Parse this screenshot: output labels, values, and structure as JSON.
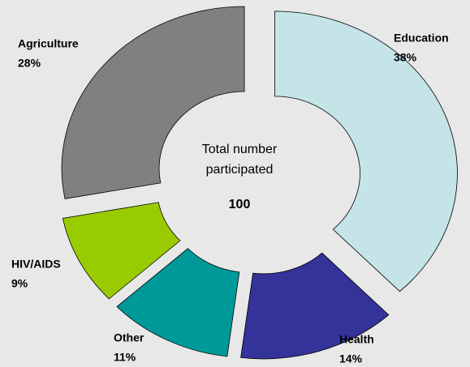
{
  "chart_data": {
    "type": "donut",
    "categories": [
      "Education",
      "Health",
      "Other",
      "HIV/AIDS",
      "Agriculture"
    ],
    "values": [
      38,
      14,
      11,
      9,
      28
    ],
    "value_labels": [
      "38%",
      "14%",
      "11%",
      "9%",
      "28%"
    ],
    "colors": [
      "#c4e4e8",
      "#333399",
      "#009999",
      "#99cc00",
      "#808080"
    ],
    "center_label": "Total number participated",
    "center_value": 100
  }
}
